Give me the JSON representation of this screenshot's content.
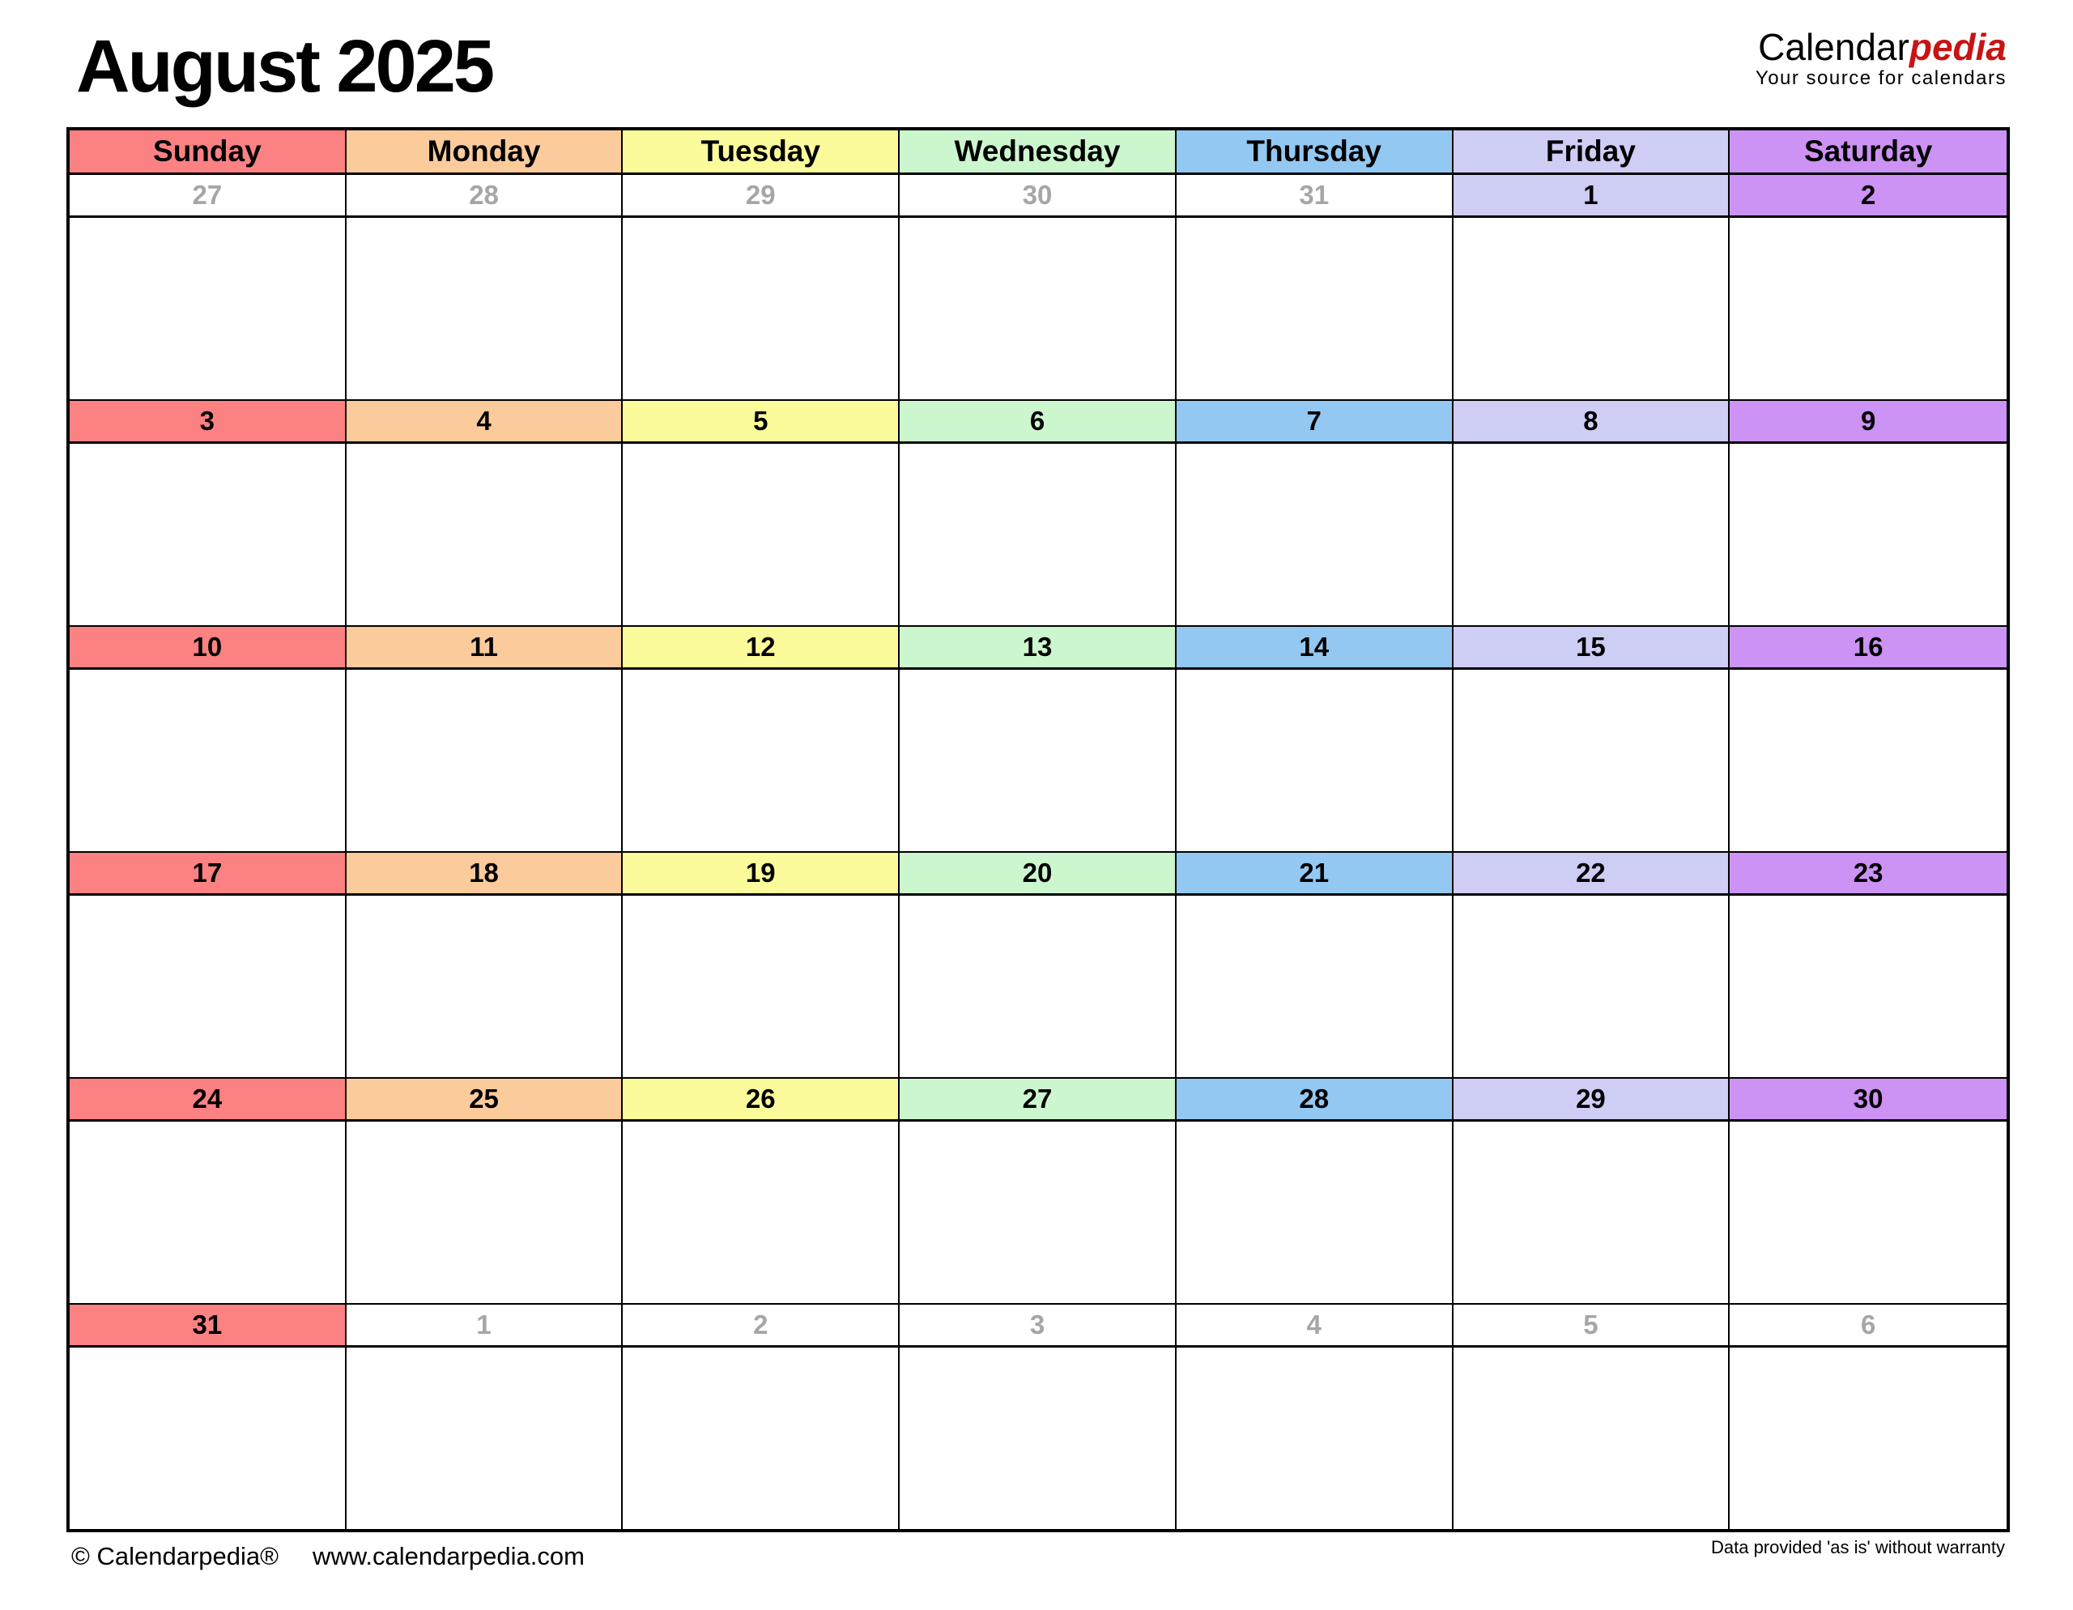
{
  "page": {
    "title": "August 2025",
    "logo": {
      "part1": "Calendar",
      "part2": "pedia",
      "tagline": "Your source for calendars"
    },
    "footer": {
      "copyright": "© Calendarpedia®",
      "url": "www.calendarpedia.com",
      "disclaimer": "Data provided 'as is' without warranty"
    }
  },
  "colors": {
    "sunday": "#FB8182",
    "monday": "#FBCB9B",
    "tuesday": "#FBFB9B",
    "wednesday": "#CCF6CD",
    "thursday": "#93C8F2",
    "friday": "#CECDF4",
    "saturday": "#CC92F4",
    "adjacent_month_text": "#A6A6A6",
    "grid_border": "#000000",
    "logo_accent": "#C81414"
  },
  "calendar": {
    "day_headers": [
      "Sunday",
      "Monday",
      "Tuesday",
      "Wednesday",
      "Thursday",
      "Friday",
      "Saturday"
    ],
    "weeks": [
      {
        "days": [
          {
            "date": "27",
            "current": false
          },
          {
            "date": "28",
            "current": false
          },
          {
            "date": "29",
            "current": false
          },
          {
            "date": "30",
            "current": false
          },
          {
            "date": "31",
            "current": false
          },
          {
            "date": "1",
            "current": true
          },
          {
            "date": "2",
            "current": true
          }
        ]
      },
      {
        "days": [
          {
            "date": "3",
            "current": true
          },
          {
            "date": "4",
            "current": true
          },
          {
            "date": "5",
            "current": true
          },
          {
            "date": "6",
            "current": true
          },
          {
            "date": "7",
            "current": true
          },
          {
            "date": "8",
            "current": true
          },
          {
            "date": "9",
            "current": true
          }
        ]
      },
      {
        "days": [
          {
            "date": "10",
            "current": true
          },
          {
            "date": "11",
            "current": true
          },
          {
            "date": "12",
            "current": true
          },
          {
            "date": "13",
            "current": true
          },
          {
            "date": "14",
            "current": true
          },
          {
            "date": "15",
            "current": true
          },
          {
            "date": "16",
            "current": true
          }
        ]
      },
      {
        "days": [
          {
            "date": "17",
            "current": true
          },
          {
            "date": "18",
            "current": true
          },
          {
            "date": "19",
            "current": true
          },
          {
            "date": "20",
            "current": true
          },
          {
            "date": "21",
            "current": true
          },
          {
            "date": "22",
            "current": true
          },
          {
            "date": "23",
            "current": true
          }
        ]
      },
      {
        "days": [
          {
            "date": "24",
            "current": true
          },
          {
            "date": "25",
            "current": true
          },
          {
            "date": "26",
            "current": true
          },
          {
            "date": "27",
            "current": true
          },
          {
            "date": "28",
            "current": true
          },
          {
            "date": "29",
            "current": true
          },
          {
            "date": "30",
            "current": true
          }
        ]
      },
      {
        "days": [
          {
            "date": "31",
            "current": true
          },
          {
            "date": "1",
            "current": false
          },
          {
            "date": "2",
            "current": false
          },
          {
            "date": "3",
            "current": false
          },
          {
            "date": "4",
            "current": false
          },
          {
            "date": "5",
            "current": false
          },
          {
            "date": "6",
            "current": false
          }
        ]
      }
    ]
  }
}
